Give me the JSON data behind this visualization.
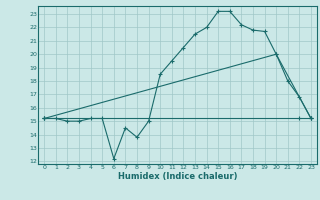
{
  "bg_color": "#cbe8e7",
  "line_color": "#1a6b6b",
  "grid_color": "#a0c8c8",
  "xlabel": "Humidex (Indice chaleur)",
  "xlim": [
    -0.5,
    23.5
  ],
  "ylim": [
    11.8,
    23.6
  ],
  "yticks": [
    12,
    13,
    14,
    15,
    16,
    17,
    18,
    19,
    20,
    21,
    22,
    23
  ],
  "xticks": [
    0,
    1,
    2,
    3,
    4,
    5,
    6,
    7,
    8,
    9,
    10,
    11,
    12,
    13,
    14,
    15,
    16,
    17,
    18,
    19,
    20,
    21,
    22,
    23
  ],
  "line1_x": [
    0,
    1,
    2,
    3,
    4,
    5,
    6,
    7,
    8,
    9,
    10,
    11,
    12,
    13,
    14,
    15,
    16,
    17,
    18,
    19,
    20,
    21,
    22,
    23
  ],
  "line1_y": [
    15.2,
    15.2,
    15.0,
    15.0,
    15.2,
    15.2,
    12.2,
    14.5,
    13.8,
    15.0,
    18.5,
    19.5,
    20.5,
    21.5,
    22.0,
    23.2,
    23.2,
    22.2,
    21.8,
    21.7,
    20.0,
    18.0,
    16.8,
    15.2
  ],
  "line2_x": [
    0,
    20,
    23
  ],
  "line2_y": [
    15.2,
    20.0,
    15.2
  ],
  "line3_x": [
    0,
    22,
    23
  ],
  "line3_y": [
    15.2,
    15.2,
    15.2
  ],
  "title_fontsize": 5.0,
  "tick_fontsize": 4.5,
  "xlabel_fontsize": 6.0
}
